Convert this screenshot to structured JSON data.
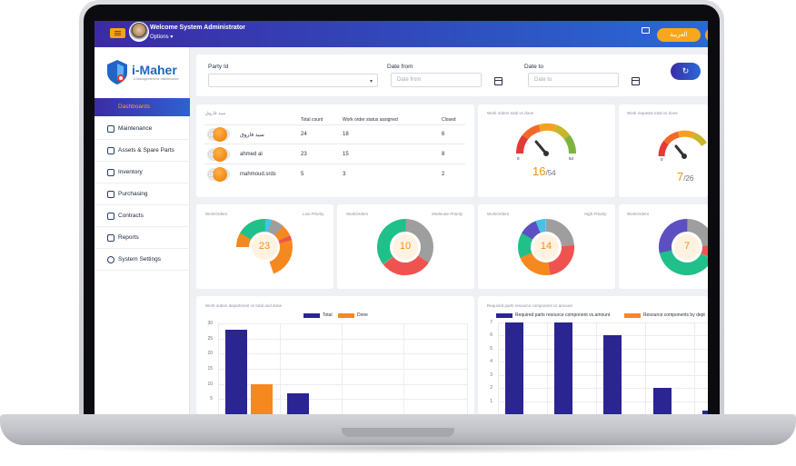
{
  "header": {
    "welcome": "Welcome System Administrator",
    "options": "Options ▾",
    "language_button": "العربية"
  },
  "sidebar": {
    "logo": "i-Maher",
    "logo_tagline": "A Management for maintenance",
    "items": [
      {
        "label": "Dashboards",
        "active": true
      },
      {
        "label": "Maintenance"
      },
      {
        "label": "Assets & Spare Parts"
      },
      {
        "label": "Inventory"
      },
      {
        "label": "Purchasing"
      },
      {
        "label": "Contracts"
      },
      {
        "label": "Reports"
      },
      {
        "label": "System Settings"
      }
    ]
  },
  "filters": {
    "party_label": "Party Id",
    "date_from_label": "Date from",
    "date_from_placeholder": "Date from",
    "date_to_label": "Date to",
    "date_to_placeholder": "Date to",
    "refresh_icon": "refresh-icon"
  },
  "table": {
    "name_header": "سيد فاروق",
    "headers": [
      "Total count",
      "Work order status assigned",
      "Closed"
    ],
    "rows": [
      {
        "name": "سيد فاروق",
        "total": "24",
        "assigned": "18",
        "closed": "6"
      },
      {
        "name": "ahmed al",
        "total": "23",
        "assigned": "15",
        "closed": "8"
      },
      {
        "name": "mahmoud.srds",
        "total": "5",
        "assigned": "3",
        "closed": "2"
      }
    ]
  },
  "gauges": [
    {
      "title": "Work orders total vs done",
      "min": "0",
      "max": "54",
      "value": "16",
      "total": "/54"
    },
    {
      "title": "Work requests total vs done",
      "min": "0",
      "max": "",
      "value": "7",
      "total": "/26"
    }
  ],
  "donuts": [
    {
      "title": "WorkOrders",
      "subtitle": "Low Priority",
      "value": "23"
    },
    {
      "title": "WorkOrders",
      "subtitle": "Moderate Priority",
      "value": "10"
    },
    {
      "title": "WorkOrders",
      "subtitle": "High Priority",
      "value": "14"
    },
    {
      "title": "WorkOrders",
      "subtitle": "",
      "value": "7"
    }
  ],
  "colors": {
    "primary": "#3b2ca6",
    "accent": "#f6a71e",
    "navy_bar": "#2a2590",
    "orange_bar": "#f5891f"
  },
  "chart_data": [
    {
      "type": "bar",
      "title": "Work orders department vs total and done",
      "series": [
        {
          "name": "Total",
          "values": [
            28,
            7
          ]
        },
        {
          "name": "Done",
          "values": [
            10,
            0
          ]
        }
      ],
      "ylim": [
        0,
        30
      ],
      "yticks": [
        "30",
        "25",
        "20",
        "15",
        "10",
        "5"
      ]
    },
    {
      "type": "bar",
      "title": "Required parts resource component vs amount",
      "series": [
        {
          "name": "Required parts resource component vs.amount",
          "values": [
            7,
            7,
            6,
            2,
            0.3
          ]
        },
        {
          "name": "Resource components by dept",
          "values": []
        }
      ],
      "ylim": [
        0,
        7
      ],
      "yticks": [
        "7",
        "6",
        "5",
        "4",
        "3",
        "2",
        "1"
      ]
    }
  ]
}
